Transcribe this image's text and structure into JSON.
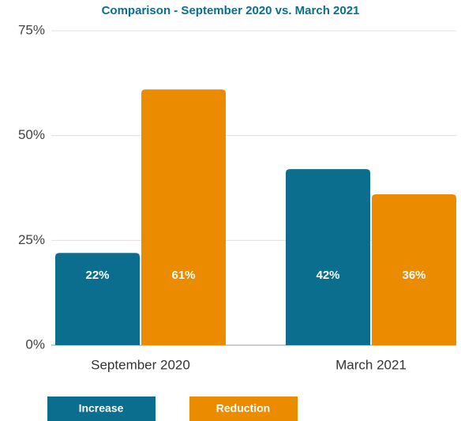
{
  "chart_data": {
    "type": "bar",
    "title": "Comparison - September 2020 vs. March 2021",
    "categories": [
      "September 2020",
      "March 2021"
    ],
    "series": [
      {
        "name": "Increase",
        "color": "#0b6e8e",
        "values": [
          22,
          42
        ],
        "value_labels": [
          "22%",
          "42%"
        ]
      },
      {
        "name": "Reduction",
        "color": "#ea8b00",
        "values": [
          61,
          36
        ],
        "value_labels": [
          "61%",
          "36%"
        ]
      }
    ],
    "ylim": [
      0,
      75
    ],
    "yticks": [
      {
        "value": 0,
        "label": "0%"
      },
      {
        "value": 25,
        "label": "25%"
      },
      {
        "value": 50,
        "label": "50%"
      },
      {
        "value": 75,
        "label": "75%"
      }
    ],
    "grid": true
  }
}
